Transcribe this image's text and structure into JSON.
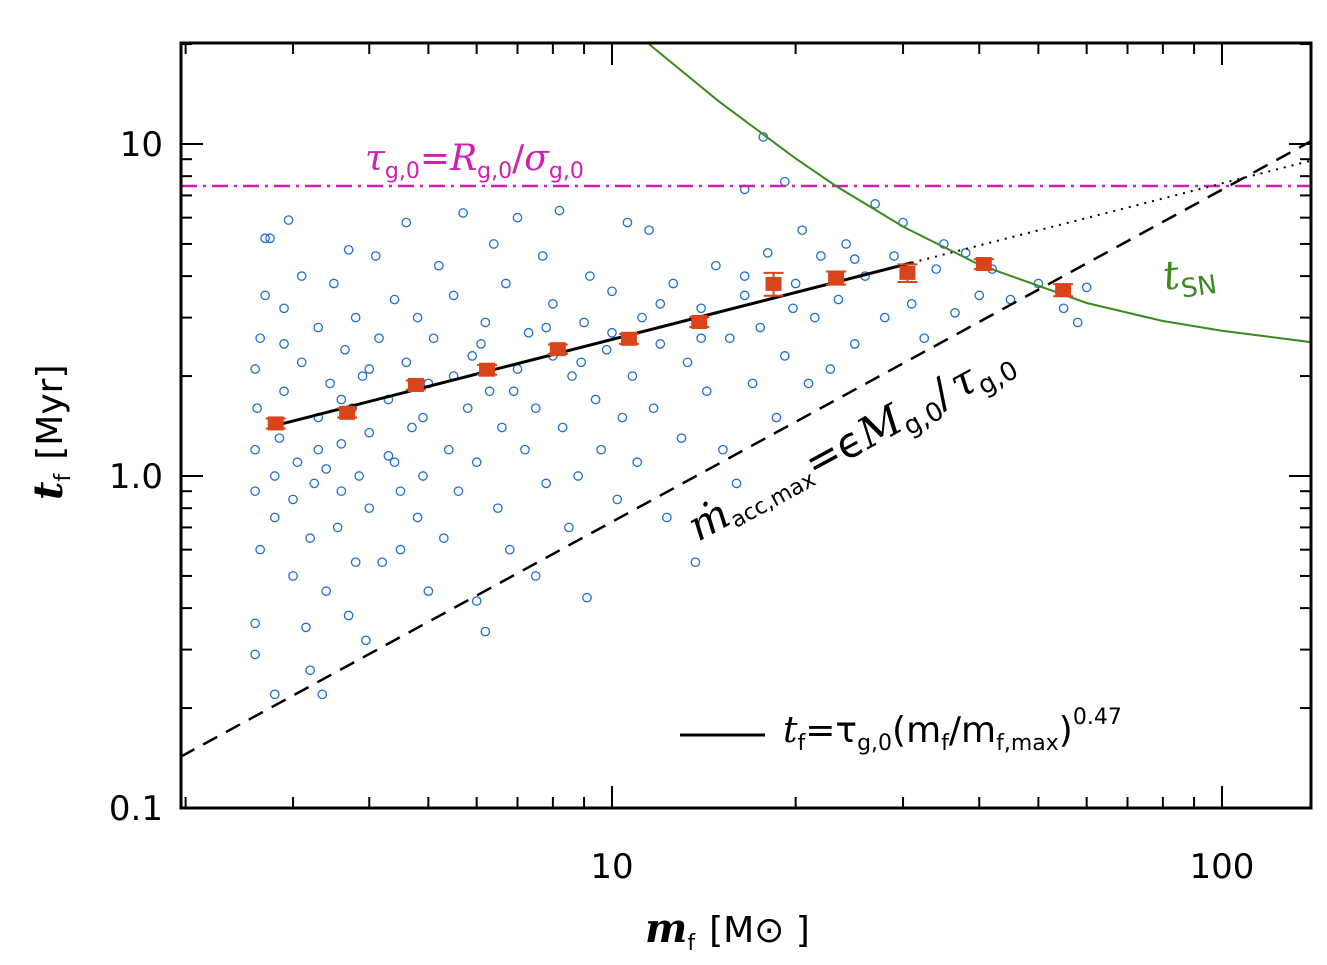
{
  "chart_data": {
    "type": "scatter",
    "xscale": "log",
    "yscale": "log",
    "xlim": [
      1.96,
      140
    ],
    "ylim": [
      0.1,
      20
    ],
    "grid": false,
    "xlabel": {
      "main": "m",
      "sub": "f",
      "unit": "[M⊙ ]"
    },
    "ylabel": {
      "main": "t",
      "sub": "f",
      "unit": "[Myr]"
    },
    "x_ticks": [
      {
        "value": 10,
        "label": "10"
      },
      {
        "value": 100,
        "label": "100"
      }
    ],
    "y_ticks": [
      {
        "value": 0.1,
        "label": "0.1"
      },
      {
        "value": 1,
        "label": "1.0"
      },
      {
        "value": 10,
        "label": "10"
      }
    ],
    "colors": {
      "scatter": "#1f6fd0",
      "binned": "#d9441a",
      "tau_line": "#d020b0",
      "tsn": "#3c8a1e",
      "fit": "#000000"
    },
    "scatter_points": [
      [
        2.6,
        0.29
      ],
      [
        2.6,
        0.36
      ],
      [
        2.65,
        0.6
      ],
      [
        2.6,
        0.9
      ],
      [
        2.6,
        1.2
      ],
      [
        2.62,
        1.6
      ],
      [
        2.6,
        2.1
      ],
      [
        2.65,
        2.6
      ],
      [
        2.7,
        5.2
      ],
      [
        2.75,
        5.2
      ],
      [
        2.8,
        0.22
      ],
      [
        2.8,
        0.75
      ],
      [
        2.8,
        1.0
      ],
      [
        2.85,
        1.3
      ],
      [
        2.9,
        1.8
      ],
      [
        2.9,
        3.2
      ],
      [
        2.95,
        5.9
      ],
      [
        3.0,
        0.5
      ],
      [
        3.0,
        0.85
      ],
      [
        3.05,
        1.1
      ],
      [
        3.1,
        2.2
      ],
      [
        3.1,
        4.0
      ],
      [
        3.15,
        0.35
      ],
      [
        3.2,
        0.26
      ],
      [
        3.2,
        0.65
      ],
      [
        3.25,
        0.95
      ],
      [
        3.3,
        1.5
      ],
      [
        3.3,
        2.8
      ],
      [
        3.35,
        0.22
      ],
      [
        3.4,
        0.45
      ],
      [
        3.4,
        1.05
      ],
      [
        3.45,
        1.9
      ],
      [
        3.5,
        3.8
      ],
      [
        3.55,
        0.7
      ],
      [
        3.6,
        0.9
      ],
      [
        3.6,
        1.25
      ],
      [
        3.65,
        2.4
      ],
      [
        3.7,
        0.38
      ],
      [
        3.7,
        4.8
      ],
      [
        3.75,
        1.6
      ],
      [
        3.8,
        0.55
      ],
      [
        3.8,
        3.0
      ],
      [
        3.85,
        1.0
      ],
      [
        3.9,
        2.0
      ],
      [
        3.95,
        0.32
      ],
      [
        4.0,
        0.8
      ],
      [
        4.0,
        1.35
      ],
      [
        4.1,
        4.6
      ],
      [
        4.15,
        2.6
      ],
      [
        4.2,
        0.55
      ],
      [
        4.3,
        1.15
      ],
      [
        4.3,
        1.7
      ],
      [
        4.4,
        3.4
      ],
      [
        4.5,
        0.6
      ],
      [
        4.5,
        0.9
      ],
      [
        4.6,
        5.8
      ],
      [
        4.6,
        2.2
      ],
      [
        4.7,
        1.4
      ],
      [
        4.8,
        0.75
      ],
      [
        4.8,
        3.0
      ],
      [
        4.9,
        1.0
      ],
      [
        5.0,
        0.45
      ],
      [
        5.0,
        1.9
      ],
      [
        5.1,
        2.6
      ],
      [
        5.2,
        4.3
      ],
      [
        5.3,
        0.65
      ],
      [
        5.4,
        1.2
      ],
      [
        5.5,
        3.5
      ],
      [
        5.6,
        0.9
      ],
      [
        5.7,
        6.2
      ],
      [
        5.8,
        1.6
      ],
      [
        5.9,
        2.3
      ],
      [
        6.0,
        0.42
      ],
      [
        6.0,
        1.1
      ],
      [
        6.2,
        0.34
      ],
      [
        6.2,
        2.9
      ],
      [
        6.3,
        1.8
      ],
      [
        6.4,
        5.0
      ],
      [
        6.5,
        0.8
      ],
      [
        6.6,
        1.4
      ],
      [
        6.7,
        3.8
      ],
      [
        6.8,
        0.6
      ],
      [
        7.0,
        2.1
      ],
      [
        7.0,
        6.0
      ],
      [
        7.2,
        1.2
      ],
      [
        7.3,
        2.7
      ],
      [
        7.5,
        0.5
      ],
      [
        7.5,
        1.6
      ],
      [
        7.7,
        4.6
      ],
      [
        7.8,
        0.95
      ],
      [
        8.0,
        2.3
      ],
      [
        8.0,
        3.3
      ],
      [
        8.2,
        6.3
      ],
      [
        8.3,
        1.4
      ],
      [
        8.5,
        0.7
      ],
      [
        8.6,
        2.0
      ],
      [
        8.8,
        1.0
      ],
      [
        9.0,
        2.9
      ],
      [
        9.1,
        0.43
      ],
      [
        9.2,
        4.0
      ],
      [
        9.4,
        1.7
      ],
      [
        9.6,
        1.2
      ],
      [
        9.8,
        2.4
      ],
      [
        10.0,
        3.6
      ],
      [
        10.2,
        0.85
      ],
      [
        10.4,
        1.5
      ],
      [
        10.6,
        5.8
      ],
      [
        10.8,
        2.0
      ],
      [
        11.0,
        1.1
      ],
      [
        11.2,
        3.0
      ],
      [
        11.5,
        5.5
      ],
      [
        11.7,
        1.6
      ],
      [
        12.0,
        2.5
      ],
      [
        12.3,
        0.75
      ],
      [
        12.6,
        3.8
      ],
      [
        13.0,
        1.3
      ],
      [
        13.3,
        2.2
      ],
      [
        13.7,
        0.55
      ],
      [
        14.0,
        3.2
      ],
      [
        14.3,
        1.8
      ],
      [
        14.8,
        4.3
      ],
      [
        15.2,
        1.2
      ],
      [
        15.6,
        2.6
      ],
      [
        16.0,
        0.95
      ],
      [
        16.5,
        7.3
      ],
      [
        16.5,
        3.5
      ],
      [
        17.0,
        1.9
      ],
      [
        17.5,
        2.8
      ],
      [
        18.0,
        4.7
      ],
      [
        18.6,
        1.5
      ],
      [
        19.2,
        7.7
      ],
      [
        19.2,
        2.3
      ],
      [
        19.8,
        3.2
      ],
      [
        20.5,
        5.5
      ],
      [
        21.0,
        1.9
      ],
      [
        21.5,
        3.0
      ],
      [
        22.0,
        4.6
      ],
      [
        22.8,
        2.1
      ],
      [
        23.5,
        3.4
      ],
      [
        24.2,
        5.0
      ],
      [
        25.0,
        2.5
      ],
      [
        26.0,
        4.0
      ],
      [
        27.0,
        6.6
      ],
      [
        28.0,
        3.0
      ],
      [
        29.0,
        4.6
      ],
      [
        30.0,
        5.8
      ],
      [
        31.0,
        3.3
      ],
      [
        32.5,
        2.6
      ],
      [
        34.0,
        4.2
      ],
      [
        35.0,
        5.0
      ],
      [
        36.5,
        3.1
      ],
      [
        38.0,
        4.7
      ],
      [
        40.0,
        3.5
      ],
      [
        42.0,
        4.2
      ],
      [
        45.0,
        3.4
      ],
      [
        50.0,
        3.8
      ],
      [
        55.0,
        3.2
      ],
      [
        58.0,
        2.9
      ],
      [
        60.0,
        3.7
      ],
      [
        17.7,
        10.5
      ],
      [
        2.7,
        3.5
      ],
      [
        2.9,
        2.5
      ],
      [
        3.3,
        1.2
      ],
      [
        3.6,
        1.7
      ],
      [
        4.0,
        2.1
      ],
      [
        4.4,
        1.1
      ],
      [
        4.9,
        1.5
      ],
      [
        5.5,
        2.0
      ],
      [
        6.1,
        2.5
      ],
      [
        6.9,
        1.8
      ],
      [
        7.8,
        2.8
      ],
      [
        8.9,
        2.2
      ],
      [
        10.0,
        2.7
      ],
      [
        12.0,
        3.3
      ],
      [
        14.0,
        2.6
      ],
      [
        16.5,
        4.0
      ],
      [
        20.0,
        3.8
      ],
      [
        25.0,
        4.5
      ]
    ],
    "binned_means": [
      {
        "x": 2.81,
        "y": 1.44,
        "err": 0.05
      },
      {
        "x": 3.68,
        "y": 1.55,
        "err": 0.05
      },
      {
        "x": 4.77,
        "y": 1.88,
        "err": 0.06
      },
      {
        "x": 6.24,
        "y": 2.09,
        "err": 0.07
      },
      {
        "x": 8.15,
        "y": 2.41,
        "err": 0.08
      },
      {
        "x": 10.66,
        "y": 2.59,
        "err": 0.09
      },
      {
        "x": 13.9,
        "y": 2.91,
        "err": 0.1
      },
      {
        "x": 18.4,
        "y": 3.79,
        "err": 0.3
      },
      {
        "x": 23.3,
        "y": 3.95,
        "err": 0.18
      },
      {
        "x": 30.5,
        "y": 4.09,
        "err": 0.25
      },
      {
        "x": 40.7,
        "y": 4.35,
        "err": 0.15
      },
      {
        "x": 54.9,
        "y": 3.63,
        "err": 0.15
      }
    ],
    "fit_line": {
      "exponent": 0.47,
      "x_range": [
        2.81,
        31
      ],
      "y_at_start": 1.42,
      "y_at_end": 4.4,
      "dotted_extension_to": 140
    },
    "tau_line": {
      "y": 7.47
    },
    "accretion_line": {
      "points": [
        [
          1.96,
          0.1425
        ],
        [
          140,
          10.2
        ]
      ]
    },
    "tsn_curve": [
      [
        11.5,
        20
      ],
      [
        15,
        13.4
      ],
      [
        20,
        9.05
      ],
      [
        23.3,
        7.47
      ],
      [
        30,
        5.64
      ],
      [
        40,
        4.33
      ],
      [
        60,
        3.32
      ],
      [
        80,
        2.93
      ],
      [
        100,
        2.74
      ],
      [
        140,
        2.53
      ]
    ],
    "annotations": {
      "tau": {
        "sym": "τ",
        "sub1": "g,0",
        "eq": "=",
        "R": "R",
        "sub2": "g,0",
        "slash": "/",
        "sigma": "σ",
        "sub3": "g,0"
      },
      "tsn": {
        "main": "t",
        "sub": "SN"
      },
      "accretion": {
        "m": "ṁ",
        "sub1": "acc,max",
        "eq": "=ϵ",
        "M": "M",
        "sub2": "g,0",
        "slash": "/",
        "tau": "τ",
        "sub3": "g,0"
      },
      "legend": {
        "t": "t",
        "sub1": "f",
        "eq": "=τ",
        "sub2": "g,0",
        "open": "(m",
        "sub3": "f",
        "slash": "/m",
        "sub4": "f,max",
        "close": ")",
        "exp": "0.47"
      }
    }
  }
}
